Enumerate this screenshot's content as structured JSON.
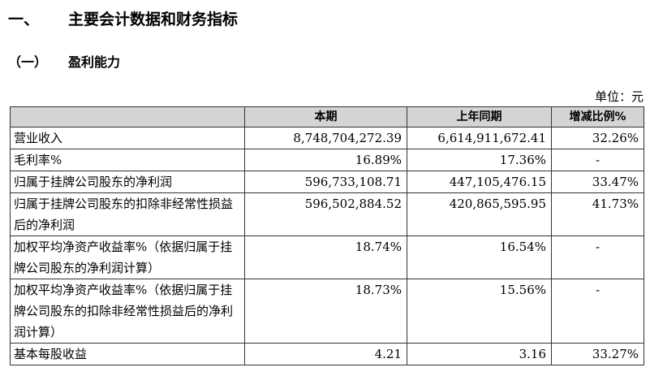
{
  "heading1": {
    "number": "一、",
    "text": "主要会计数据和财务指标"
  },
  "heading2": {
    "number": "（一）",
    "text": "盈利能力"
  },
  "unit": "单位：元",
  "table": {
    "headers": [
      "",
      "本期",
      "上年同期",
      "增减比例%"
    ],
    "rows": [
      {
        "label": "营业收入",
        "current": "8,748,704,272.39",
        "prior": "6,614,911,672.41",
        "change": "32.26%"
      },
      {
        "label": "毛利率%",
        "current": "16.89%",
        "prior": "17.36%",
        "change": "-"
      },
      {
        "label": "归属于挂牌公司股东的净利润",
        "current": "596,733,108.71",
        "prior": "447,105,476.15",
        "change": "33.47%"
      },
      {
        "label": "归属于挂牌公司股东的扣除非经常性损益后的净利润",
        "current": "596,502,884.52",
        "prior": "420,865,595.95",
        "change": "41.73%"
      },
      {
        "label": "加权平均净资产收益率%（依据归属于挂牌公司股东的净利润计算）",
        "current": "18.74%",
        "prior": "16.54%",
        "change": "-"
      },
      {
        "label": "加权平均净资产收益率%（依据归属于挂牌公司股东的扣除非经常性损益后的净利润计算）",
        "current": "18.73%",
        "prior": "15.56%",
        "change": "-"
      },
      {
        "label": "基本每股收益",
        "current": "4.21",
        "prior": "3.16",
        "change": "33.27%"
      }
    ]
  }
}
